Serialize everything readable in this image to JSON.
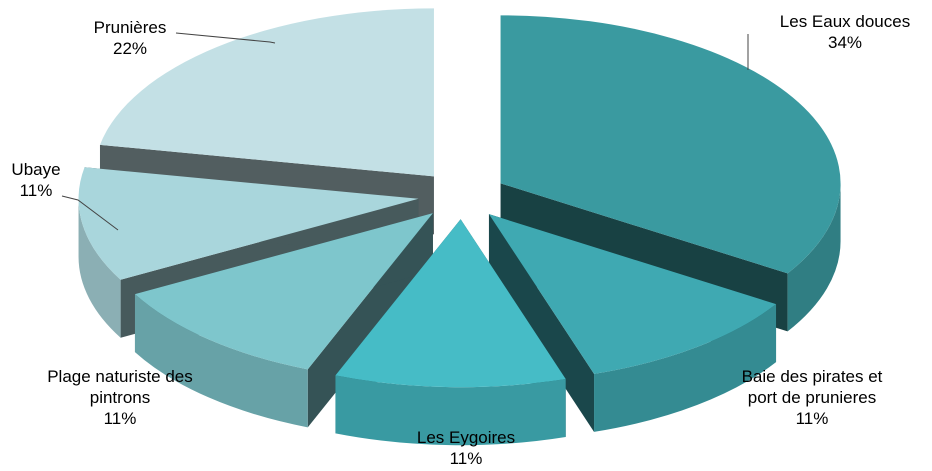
{
  "chart_data": {
    "type": "pie",
    "style": "3d-exploded",
    "title": "",
    "legend": "none",
    "slices": [
      {
        "name": "Les Eaux douces",
        "value": 34,
        "label_lines": [
          "Les Eaux douces"
        ],
        "pct": "34%",
        "color": "#3a9aa0"
      },
      {
        "name": "Baie des pirates et port de prunieres",
        "value": 11,
        "label_lines": [
          "Baie des pirates et",
          "port de prunieres"
        ],
        "pct": "11%",
        "color": "#3fa9b2"
      },
      {
        "name": "Les Eygoires",
        "value": 11,
        "label_lines": [
          "Les Eygoires"
        ],
        "pct": "11%",
        "color": "#46bcc6"
      },
      {
        "name": "Plage naturiste des pintrons",
        "value": 11,
        "label_lines": [
          "Plage naturiste des",
          "pintrons"
        ],
        "pct": "11%",
        "color": "#7ec6cc"
      },
      {
        "name": "Ubaye",
        "value": 11,
        "label_lines": [
          "Ubaye"
        ],
        "pct": "11%",
        "color": "#a9d6dc"
      },
      {
        "name": "Prunières",
        "value": 22,
        "label_lines": [
          "Prunières"
        ],
        "pct": "22%",
        "color": "#c3e0e5"
      }
    ]
  }
}
